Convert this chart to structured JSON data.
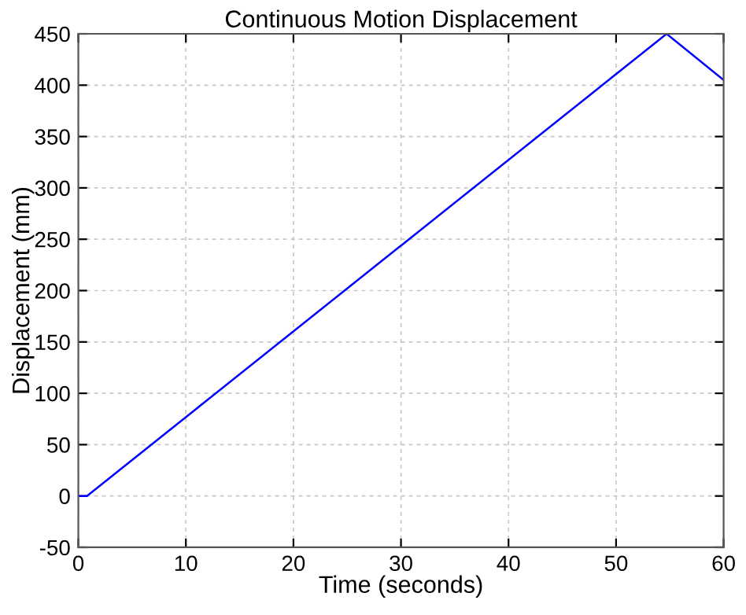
{
  "chart_data": {
    "type": "line",
    "title": "Continuous Motion Displacement",
    "xlabel": "Time (seconds)",
    "ylabel": "Displacement (mm)",
    "series": [
      {
        "color": "#0000ff",
        "x": [
          0,
          0.8,
          54.7,
          60
        ],
        "values": [
          0,
          0,
          450,
          405
        ]
      }
    ],
    "xlim": [
      0,
      60
    ],
    "xticks": [
      0,
      10,
      20,
      30,
      40,
      50,
      60
    ],
    "ylim": [
      -50,
      450
    ],
    "yticks": [
      -50,
      0,
      50,
      100,
      150,
      200,
      250,
      300,
      350,
      400,
      450
    ],
    "grid": true,
    "line_style": "solid",
    "marker": "none"
  }
}
